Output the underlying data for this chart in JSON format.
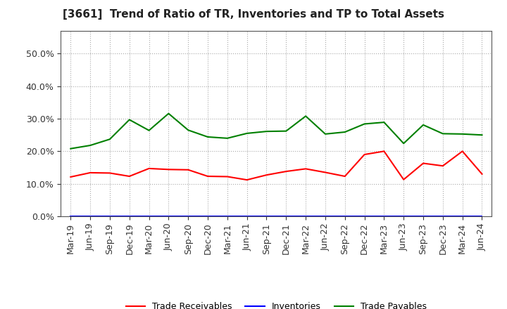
{
  "title": "[3661]  Trend of Ratio of TR, Inventories and TP to Total Assets",
  "labels": [
    "Mar-19",
    "Jun-19",
    "Sep-19",
    "Dec-19",
    "Mar-20",
    "Jun-20",
    "Sep-20",
    "Dec-20",
    "Mar-21",
    "Jun-21",
    "Sep-21",
    "Dec-21",
    "Mar-22",
    "Jun-22",
    "Sep-22",
    "Dec-22",
    "Mar-23",
    "Jun-23",
    "Sep-23",
    "Dec-23",
    "Mar-24",
    "Jun-24"
  ],
  "trade_receivables": [
    0.121,
    0.134,
    0.133,
    0.123,
    0.147,
    0.144,
    0.143,
    0.123,
    0.122,
    0.112,
    0.127,
    0.138,
    0.146,
    0.135,
    0.123,
    0.19,
    0.2,
    0.113,
    0.163,
    0.155,
    0.2,
    0.13
  ],
  "inventories": [
    0.001,
    0.001,
    0.001,
    0.001,
    0.001,
    0.001,
    0.001,
    0.001,
    0.001,
    0.001,
    0.001,
    0.001,
    0.001,
    0.001,
    0.001,
    0.001,
    0.001,
    0.001,
    0.001,
    0.001,
    0.001,
    0.001
  ],
  "trade_payables": [
    0.208,
    0.218,
    0.237,
    0.297,
    0.264,
    0.316,
    0.265,
    0.244,
    0.24,
    0.255,
    0.261,
    0.262,
    0.308,
    0.253,
    0.259,
    0.284,
    0.289,
    0.224,
    0.281,
    0.254,
    0.253,
    0.25
  ],
  "tr_color": "#FF0000",
  "inv_color": "#0000FF",
  "tp_color": "#008000",
  "ylim": [
    0.0,
    0.57
  ],
  "yticks": [
    0.0,
    0.1,
    0.2,
    0.3,
    0.4,
    0.5
  ],
  "background_color": "#FFFFFF",
  "grid_color": "#AAAAAA",
  "title_fontsize": 11,
  "tick_fontsize": 9
}
